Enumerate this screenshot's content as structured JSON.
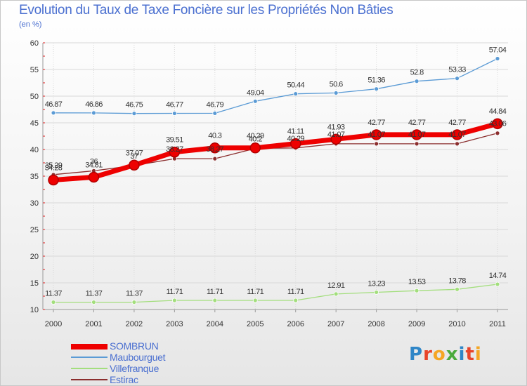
{
  "header": {
    "title": "Evolution du Taux de Taxe Foncière sur les Propriétés Non Bâties",
    "unit": "(en %)"
  },
  "logo": {
    "text": "Proxiti",
    "colors": [
      "#2f86c7",
      "#e8442a",
      "#f5a623",
      "#4aaa3c",
      "#2f86c7",
      "#e8442a",
      "#f5a623"
    ]
  },
  "chart_data": {
    "type": "line",
    "title": "Evolution du Taux de Taxe Foncière sur les Propriétés Non Bâties",
    "ylabel": "(en %)",
    "x": [
      "2000",
      "2001",
      "2002",
      "2003",
      "2004",
      "2005",
      "2006",
      "2007",
      "2008",
      "2009",
      "2010",
      "2011"
    ],
    "ylim": [
      10,
      60
    ],
    "yticks": [
      "10",
      "15",
      "20",
      "25",
      "30",
      "35",
      "40",
      "45",
      "50",
      "55",
      "60"
    ],
    "grid": true,
    "legend_position": "bottom-left",
    "series": [
      {
        "name": "SOMBRUN",
        "color": "#ee0000",
        "values": [
          34.28,
          34.81,
          37.07,
          39.51,
          40.3,
          40.29,
          41.11,
          41.93,
          42.77,
          42.77,
          42.77,
          44.84
        ],
        "labels": [
          "34.28",
          "34.81",
          "37.07",
          "39.51",
          "40.3",
          "40.29",
          "41.11",
          "41.93",
          "42.77",
          "42.77",
          "42.77",
          "44.84"
        ]
      },
      {
        "name": "Maubourguet",
        "color": "#5b9bd5",
        "values": [
          46.87,
          46.86,
          46.75,
          46.77,
          46.79,
          49.04,
          50.44,
          50.6,
          51.36,
          52.8,
          53.33,
          57.04
        ],
        "labels": [
          "46.87",
          "46.86",
          "46.75",
          "46.77",
          "46.79",
          "49.04",
          "50.44",
          "50.6",
          "51.36",
          "52.8",
          "53.33",
          "57.04"
        ]
      },
      {
        "name": "Villefranque",
        "color": "#a3de7d",
        "values": [
          11.37,
          11.37,
          11.37,
          11.71,
          11.71,
          11.71,
          11.71,
          12.91,
          13.23,
          13.53,
          13.78,
          14.74
        ],
        "labels": [
          "11.37",
          "11.37",
          "11.37",
          "11.71",
          "11.71",
          "11.71",
          "11.71",
          "12.91",
          "13.23",
          "13.53",
          "13.78",
          "14.74"
        ]
      },
      {
        "name": "Estirac",
        "color": "#8b2e2e",
        "values": [
          35.29,
          36,
          37,
          38.27,
          38.27,
          40.2,
          40.29,
          41.07,
          41.07,
          41.07,
          41.07,
          43.06
        ],
        "labels": [
          "35.29",
          "36",
          "37",
          "38.27",
          "38.27",
          "40.2",
          "40.29",
          "41.07",
          "41.07",
          "41.07",
          "41.07",
          "43.06"
        ]
      }
    ]
  }
}
